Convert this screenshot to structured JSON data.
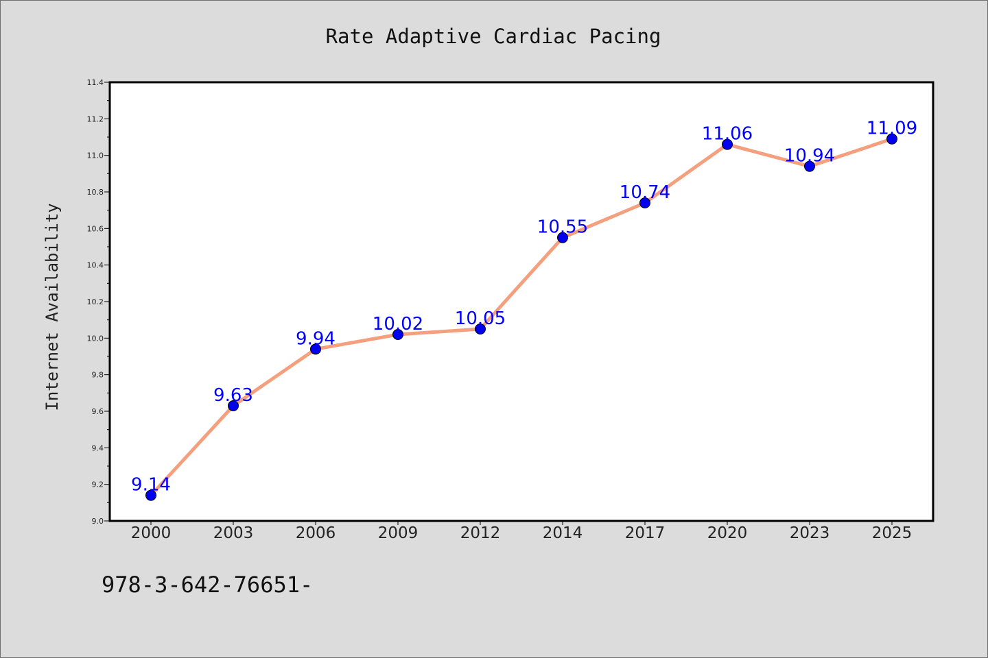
{
  "chart_data": {
    "type": "line",
    "title": "Rate Adaptive Cardiac Pacing",
    "ylabel": "Internet Availability",
    "xlabel": "",
    "categories": [
      "2000",
      "2003",
      "2006",
      "2009",
      "2012",
      "2014",
      "2017",
      "2020",
      "2023",
      "2025"
    ],
    "series": [
      {
        "values": [
          9.14,
          9.63,
          9.94,
          10.02,
          10.05,
          10.55,
          10.74,
          11.06,
          10.94,
          11.09
        ],
        "line_color": "#f4a07e",
        "marker_color": "#0000ee"
      }
    ],
    "data_labels": [
      "9.14",
      "9.63",
      "9.94",
      "10.02",
      "10.05",
      "10.55",
      "10.74",
      "11.06",
      "10.94",
      "11.09"
    ],
    "ylim": [
      9.0,
      11.4
    ],
    "yticks": [
      "9.0",
      "9.2",
      "9.4",
      "9.6",
      "9.8",
      "10.0",
      "10.2",
      "10.4",
      "10.6",
      "10.8",
      "11.0",
      "11.2",
      "11.4"
    ],
    "grid": false,
    "label_color": "#0000ff"
  },
  "footer": {
    "code": "978-3-642-76651-"
  }
}
